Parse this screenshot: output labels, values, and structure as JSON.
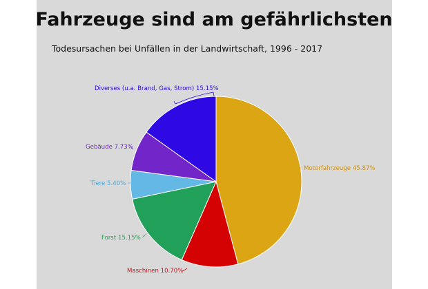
{
  "header": {
    "title": "Fahrzeuge sind am gefährlichsten",
    "subtitle": "Todesursachen bei Unfällen in der Landwirtschaft, 1996 - 2017"
  },
  "colors": {
    "panel_background": "#d9d9d9",
    "page_background": "#ffffff"
  },
  "chart_data": {
    "type": "pie",
    "title": "Fahrzeuge sind am gefährlichsten",
    "subtitle": "Todesursachen bei Unfällen in der Landwirtschaft, 1996 - 2017",
    "unit": "%",
    "slices": [
      {
        "label": "Motorfahrzeuge",
        "value": 45.87,
        "text": "Motorfahrzeuge 45.87%",
        "color": "#dba514"
      },
      {
        "label": "Maschinen",
        "value": 10.7,
        "text": "Maschinen 10.70%",
        "color": "#d40202"
      },
      {
        "label": "Forst",
        "value": 15.15,
        "text": "Forst 15.15%",
        "color": "#21a05a"
      },
      {
        "label": "Tiere",
        "value": 5.4,
        "text": "Tiere 5.40%",
        "color": "#63b8e6"
      },
      {
        "label": "Gebäude",
        "value": 7.73,
        "text": "Gebäude 7.73%",
        "color": "#7226c9"
      },
      {
        "label": "Diverses (u.a. Brand, Gas, Strom)",
        "value": 15.15,
        "text": "Diverses (u.a. Brand, Gas, Strom) 15.15%",
        "color": "#2f09e3"
      }
    ],
    "label_colors": [
      "#c9901a",
      "#c8141c",
      "#2a9a55",
      "#4aa7d9",
      "#7226c9",
      "#2f09e3"
    ],
    "start_angle_deg": 0,
    "direction": "clockwise",
    "legend": "none"
  }
}
